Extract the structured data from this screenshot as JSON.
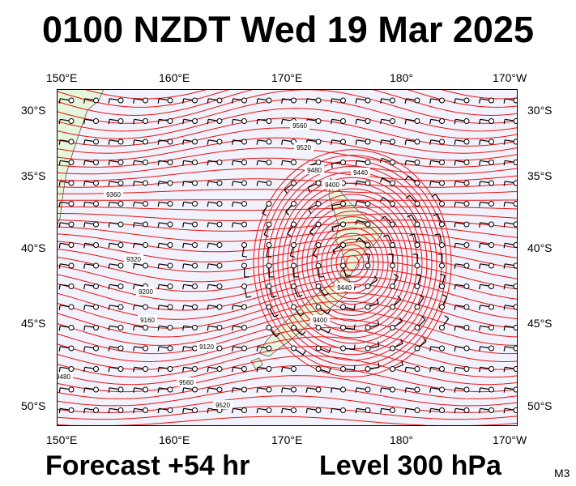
{
  "title": "0100 NZDT Wed 19 Mar 2025",
  "forecast": "Forecast +54 hr",
  "level": "Level 300 hPa",
  "model": "M3",
  "axes": {
    "lon_labels": [
      "150°E",
      "160°E",
      "170°E",
      "180°",
      "170°W"
    ],
    "lat_labels": [
      "30°S",
      "35°S",
      "40°S",
      "45°S",
      "50°S"
    ]
  },
  "contour_labels": [
    "9560",
    "9520",
    "9480",
    "9440",
    "9400",
    "9360",
    "9320",
    "9200",
    "9160",
    "9120"
  ],
  "colors": {
    "contour": "#e8100e",
    "background": "#f2f2fc",
    "land": "#e4f7dc"
  }
}
